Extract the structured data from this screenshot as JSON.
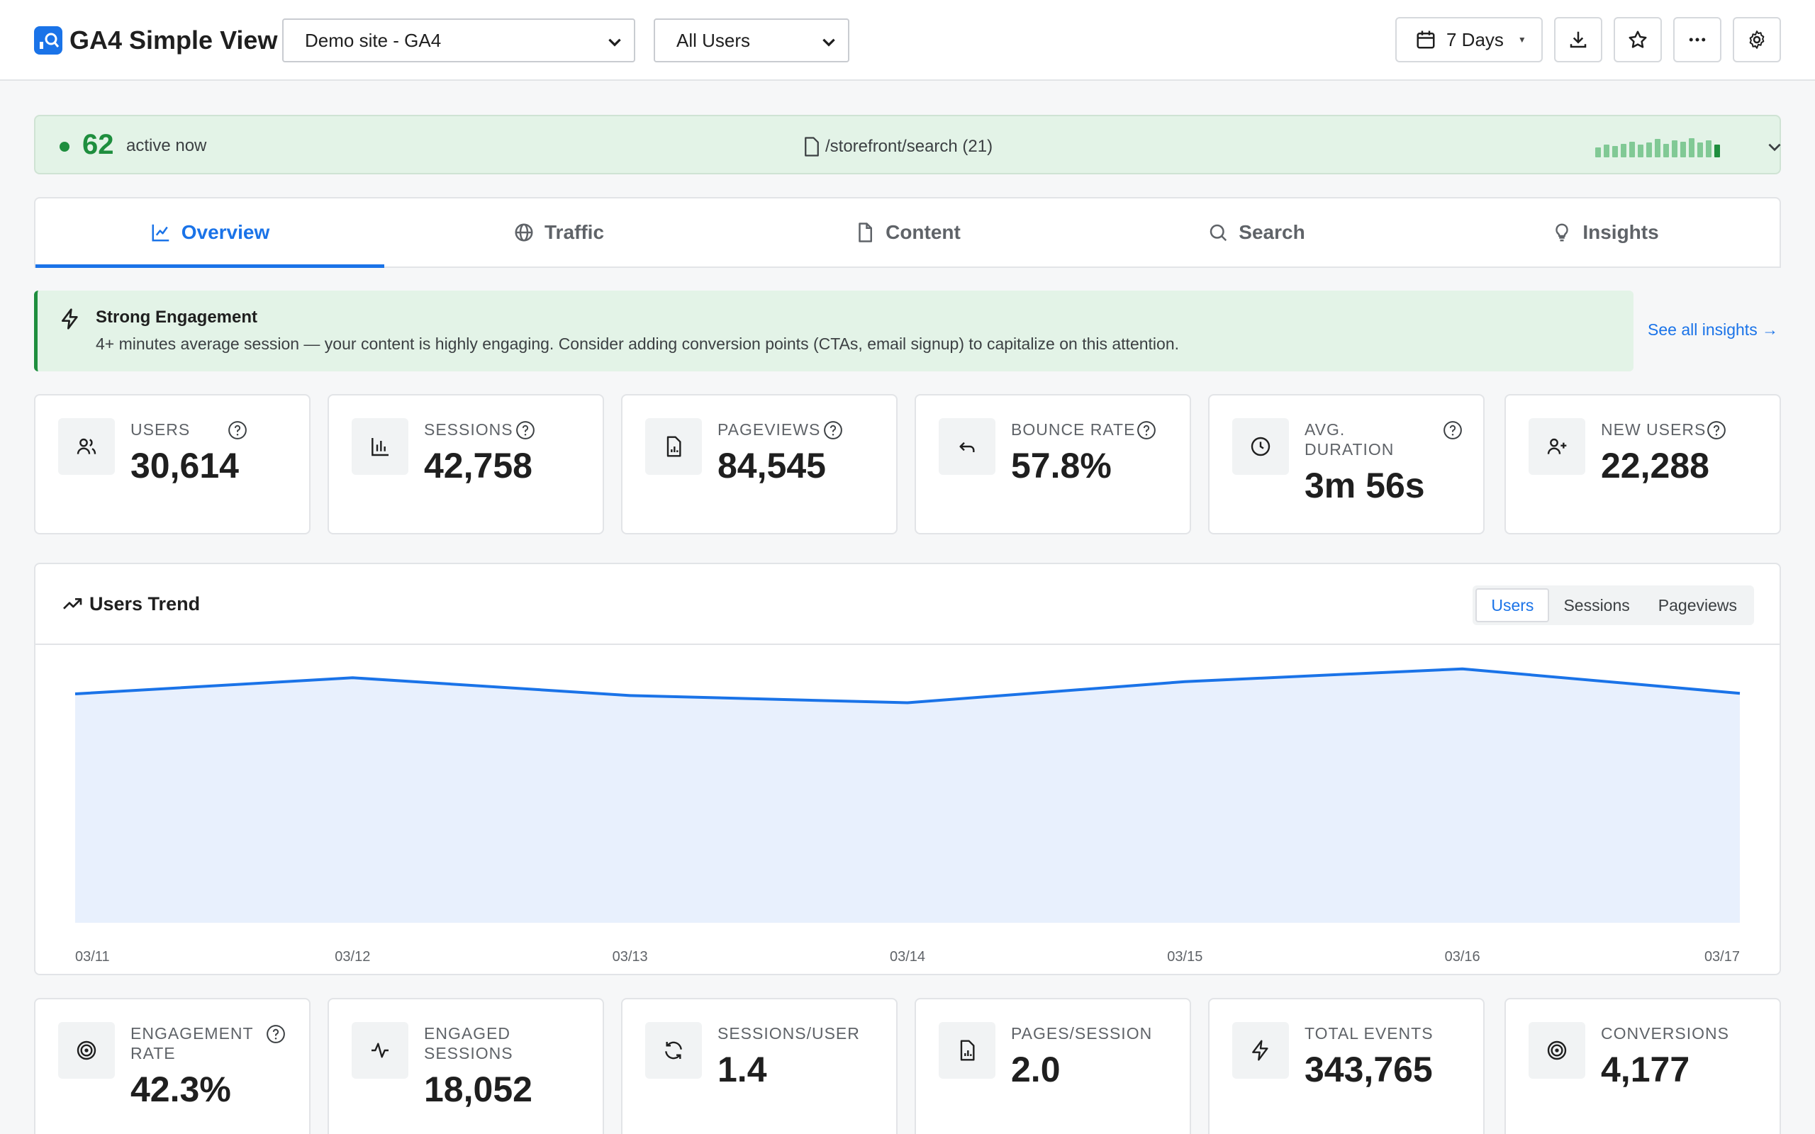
{
  "header": {
    "app_title": "GA4 Simple View",
    "property_select": "Demo site - GA4",
    "segment_select": "All Users",
    "date_range": "7 Days"
  },
  "realtime": {
    "count": "62",
    "label": "active now",
    "top_page": "/storefront/search (21)",
    "bars": [
      0.45,
      0.55,
      0.5,
      0.6,
      0.7,
      0.55,
      0.65,
      0.8,
      0.6,
      0.75,
      0.7,
      0.85,
      0.65,
      0.75,
      0.55
    ]
  },
  "tabs": [
    {
      "label": "Overview",
      "icon": "chart-line-icon",
      "active": true
    },
    {
      "label": "Traffic",
      "icon": "globe-icon",
      "active": false
    },
    {
      "label": "Content",
      "icon": "document-icon",
      "active": false
    },
    {
      "label": "Search",
      "icon": "search-icon",
      "active": false
    },
    {
      "label": "Insights",
      "icon": "lightbulb-icon",
      "active": false
    }
  ],
  "insight": {
    "title": "Strong Engagement",
    "text": "4+ minutes average session — your content is highly engaging. Consider adding conversion points (CTAs, email signup) to capitalize on this attention.",
    "link": "See all insights →"
  },
  "metrics_top": [
    {
      "label": "USERS",
      "value": "30,614",
      "icon": "users-icon"
    },
    {
      "label": "SESSIONS",
      "value": "42,758",
      "icon": "bar-chart-icon"
    },
    {
      "label": "PAGEVIEWS",
      "value": "84,545",
      "icon": "file-chart-icon"
    },
    {
      "label": "BOUNCE RATE",
      "value": "57.8%",
      "icon": "undo-arrow-icon"
    },
    {
      "label_line1": "AVG.",
      "label_line2": "DURATION",
      "value": "3m 56s",
      "icon": "clock-icon"
    },
    {
      "label": "NEW USERS",
      "value": "22,288",
      "icon": "user-plus-icon"
    }
  ],
  "metrics_bottom": [
    {
      "label_line1": "ENGAGEMENT",
      "label_line2": "RATE",
      "value": "42.3%",
      "icon": "target-icon"
    },
    {
      "label_line1": "ENGAGED",
      "label_line2": "SESSIONS",
      "value": "18,052",
      "icon": "activity-icon"
    },
    {
      "label": "SESSIONS/USER",
      "value": "1.4",
      "icon": "refresh-icon"
    },
    {
      "label": "PAGES/SESSION",
      "value": "2.0",
      "icon": "file-chart-icon"
    },
    {
      "label": "TOTAL EVENTS",
      "value": "343,765",
      "icon": "lightning-icon"
    },
    {
      "label": "CONVERSIONS",
      "value": "4,177",
      "icon": "target-icon"
    }
  ],
  "chart": {
    "title": "Users Trend",
    "toggles": [
      "Users",
      "Sessions",
      "Pageviews"
    ],
    "active_toggle": "Users"
  },
  "chart_data": {
    "type": "area",
    "title": "Users Trend",
    "x": [
      "03/11",
      "03/12",
      "03/13",
      "03/14",
      "03/15",
      "03/16",
      "03/17"
    ],
    "series": [
      {
        "name": "Users",
        "values": [
          4120,
          4410,
          4090,
          3960,
          4340,
          4570,
          4130
        ]
      }
    ],
    "ylim": [
      0,
      5000
    ],
    "grid": false,
    "colors": {
      "line": "#1a73e8",
      "fill": "#e8f0fd"
    }
  },
  "colors": {
    "accent": "#1a73e8",
    "success": "#1e8e3e",
    "success_bg": "#e3f3e7"
  }
}
